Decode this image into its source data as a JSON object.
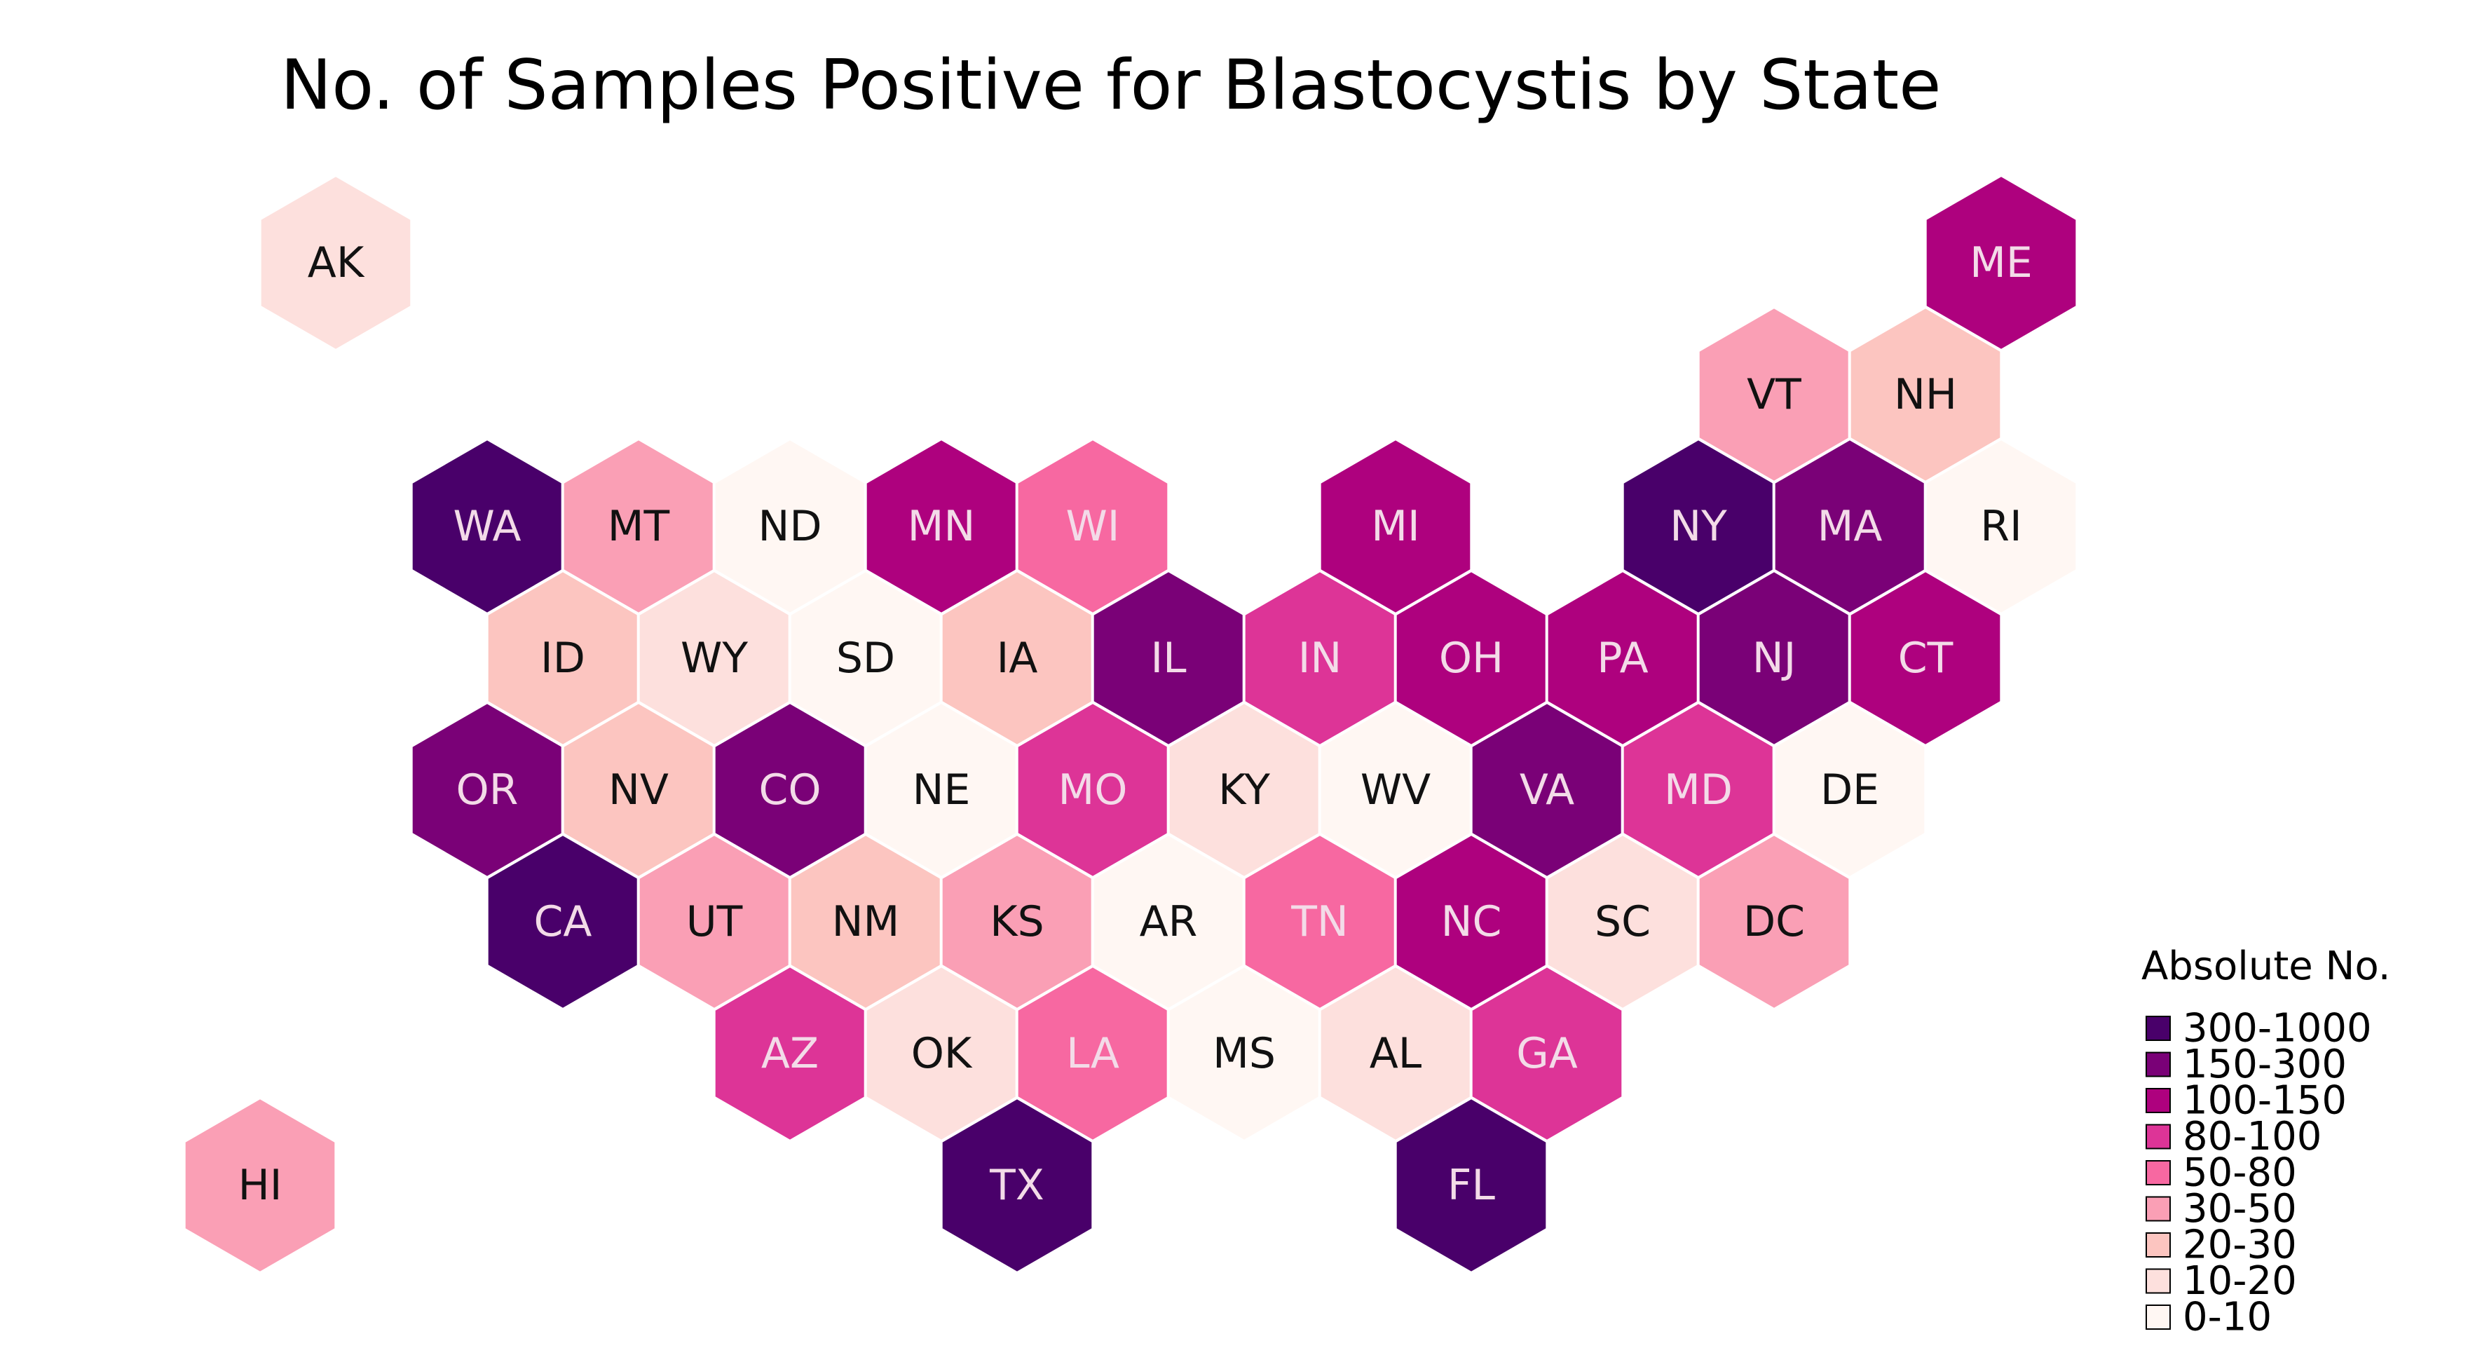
{
  "title": "No. of Samples Positive for Blastocystis by State",
  "legend": {
    "title": "Absolute No.",
    "bins": [
      {
        "label": "300-1000",
        "color": "#49006a"
      },
      {
        "label": "150-300",
        "color": "#7a0177"
      },
      {
        "label": "100-150",
        "color": "#ae017e"
      },
      {
        "label": "80-100",
        "color": "#dd3497"
      },
      {
        "label": "50-80",
        "color": "#f768a1"
      },
      {
        "label": "30-50",
        "color": "#fa9fb5"
      },
      {
        "label": "20-30",
        "color": "#fcc5c0"
      },
      {
        "label": "10-20",
        "color": "#fde0dd"
      },
      {
        "label": "0-10",
        "color": "#fff7f3"
      }
    ]
  },
  "states": [
    {
      "abbr": "AK",
      "bin": "10-20",
      "row": 0,
      "col": 0.0
    },
    {
      "abbr": "ME",
      "bin": "100-150",
      "row": 0,
      "col": 11.0
    },
    {
      "abbr": "VT",
      "bin": "30-50",
      "row": 1,
      "col": 9.5
    },
    {
      "abbr": "NH",
      "bin": "20-30",
      "row": 1,
      "col": 10.5
    },
    {
      "abbr": "WA",
      "bin": "300-1000",
      "row": 2,
      "col": 1.0
    },
    {
      "abbr": "MT",
      "bin": "30-50",
      "row": 2,
      "col": 2.0
    },
    {
      "abbr": "ND",
      "bin": "0-10",
      "row": 2,
      "col": 3.0
    },
    {
      "abbr": "MN",
      "bin": "100-150",
      "row": 2,
      "col": 4.0
    },
    {
      "abbr": "WI",
      "bin": "50-80",
      "row": 2,
      "col": 5.0
    },
    {
      "abbr": "MI",
      "bin": "100-150",
      "row": 2,
      "col": 7.0
    },
    {
      "abbr": "NY",
      "bin": "300-1000",
      "row": 2,
      "col": 9.0
    },
    {
      "abbr": "MA",
      "bin": "150-300",
      "row": 2,
      "col": 10.0
    },
    {
      "abbr": "RI",
      "bin": "0-10",
      "row": 2,
      "col": 11.0
    },
    {
      "abbr": "ID",
      "bin": "20-30",
      "row": 3,
      "col": 1.5
    },
    {
      "abbr": "WY",
      "bin": "10-20",
      "row": 3,
      "col": 2.5
    },
    {
      "abbr": "SD",
      "bin": "0-10",
      "row": 3,
      "col": 3.5
    },
    {
      "abbr": "IA",
      "bin": "20-30",
      "row": 3,
      "col": 4.5
    },
    {
      "abbr": "IL",
      "bin": "150-300",
      "row": 3,
      "col": 5.5
    },
    {
      "abbr": "IN",
      "bin": "80-100",
      "row": 3,
      "col": 6.5
    },
    {
      "abbr": "OH",
      "bin": "100-150",
      "row": 3,
      "col": 7.5
    },
    {
      "abbr": "PA",
      "bin": "100-150",
      "row": 3,
      "col": 8.5
    },
    {
      "abbr": "NJ",
      "bin": "150-300",
      "row": 3,
      "col": 9.5
    },
    {
      "abbr": "CT",
      "bin": "100-150",
      "row": 3,
      "col": 10.5
    },
    {
      "abbr": "OR",
      "bin": "150-300",
      "row": 4,
      "col": 1.0
    },
    {
      "abbr": "NV",
      "bin": "20-30",
      "row": 4,
      "col": 2.0
    },
    {
      "abbr": "CO",
      "bin": "150-300",
      "row": 4,
      "col": 3.0
    },
    {
      "abbr": "NE",
      "bin": "0-10",
      "row": 4,
      "col": 4.0
    },
    {
      "abbr": "MO",
      "bin": "80-100",
      "row": 4,
      "col": 5.0
    },
    {
      "abbr": "KY",
      "bin": "10-20",
      "row": 4,
      "col": 6.0
    },
    {
      "abbr": "WV",
      "bin": "0-10",
      "row": 4,
      "col": 7.0
    },
    {
      "abbr": "VA",
      "bin": "150-300",
      "row": 4,
      "col": 8.0
    },
    {
      "abbr": "MD",
      "bin": "80-100",
      "row": 4,
      "col": 9.0
    },
    {
      "abbr": "DE",
      "bin": "0-10",
      "row": 4,
      "col": 10.0
    },
    {
      "abbr": "CA",
      "bin": "300-1000",
      "row": 5,
      "col": 1.5
    },
    {
      "abbr": "UT",
      "bin": "30-50",
      "row": 5,
      "col": 2.5
    },
    {
      "abbr": "NM",
      "bin": "20-30",
      "row": 5,
      "col": 3.5
    },
    {
      "abbr": "KS",
      "bin": "30-50",
      "row": 5,
      "col": 4.5
    },
    {
      "abbr": "AR",
      "bin": "0-10",
      "row": 5,
      "col": 5.5
    },
    {
      "abbr": "TN",
      "bin": "50-80",
      "row": 5,
      "col": 6.5
    },
    {
      "abbr": "NC",
      "bin": "100-150",
      "row": 5,
      "col": 7.5
    },
    {
      "abbr": "SC",
      "bin": "10-20",
      "row": 5,
      "col": 8.5
    },
    {
      "abbr": "DC",
      "bin": "30-50",
      "row": 5,
      "col": 9.5
    },
    {
      "abbr": "AZ",
      "bin": "80-100",
      "row": 6,
      "col": 3.0
    },
    {
      "abbr": "OK",
      "bin": "10-20",
      "row": 6,
      "col": 4.0
    },
    {
      "abbr": "LA",
      "bin": "50-80",
      "row": 6,
      "col": 5.0
    },
    {
      "abbr": "MS",
      "bin": "0-10",
      "row": 6,
      "col": 6.0
    },
    {
      "abbr": "AL",
      "bin": "10-20",
      "row": 6,
      "col": 7.0
    },
    {
      "abbr": "GA",
      "bin": "80-100",
      "row": 6,
      "col": 8.0
    },
    {
      "abbr": "HI",
      "bin": "30-50",
      "row": 7,
      "col": -0.5
    },
    {
      "abbr": "TX",
      "bin": "300-1000",
      "row": 7,
      "col": 4.5
    },
    {
      "abbr": "FL",
      "bin": "300-1000",
      "row": 7,
      "col": 7.5
    }
  ]
}
